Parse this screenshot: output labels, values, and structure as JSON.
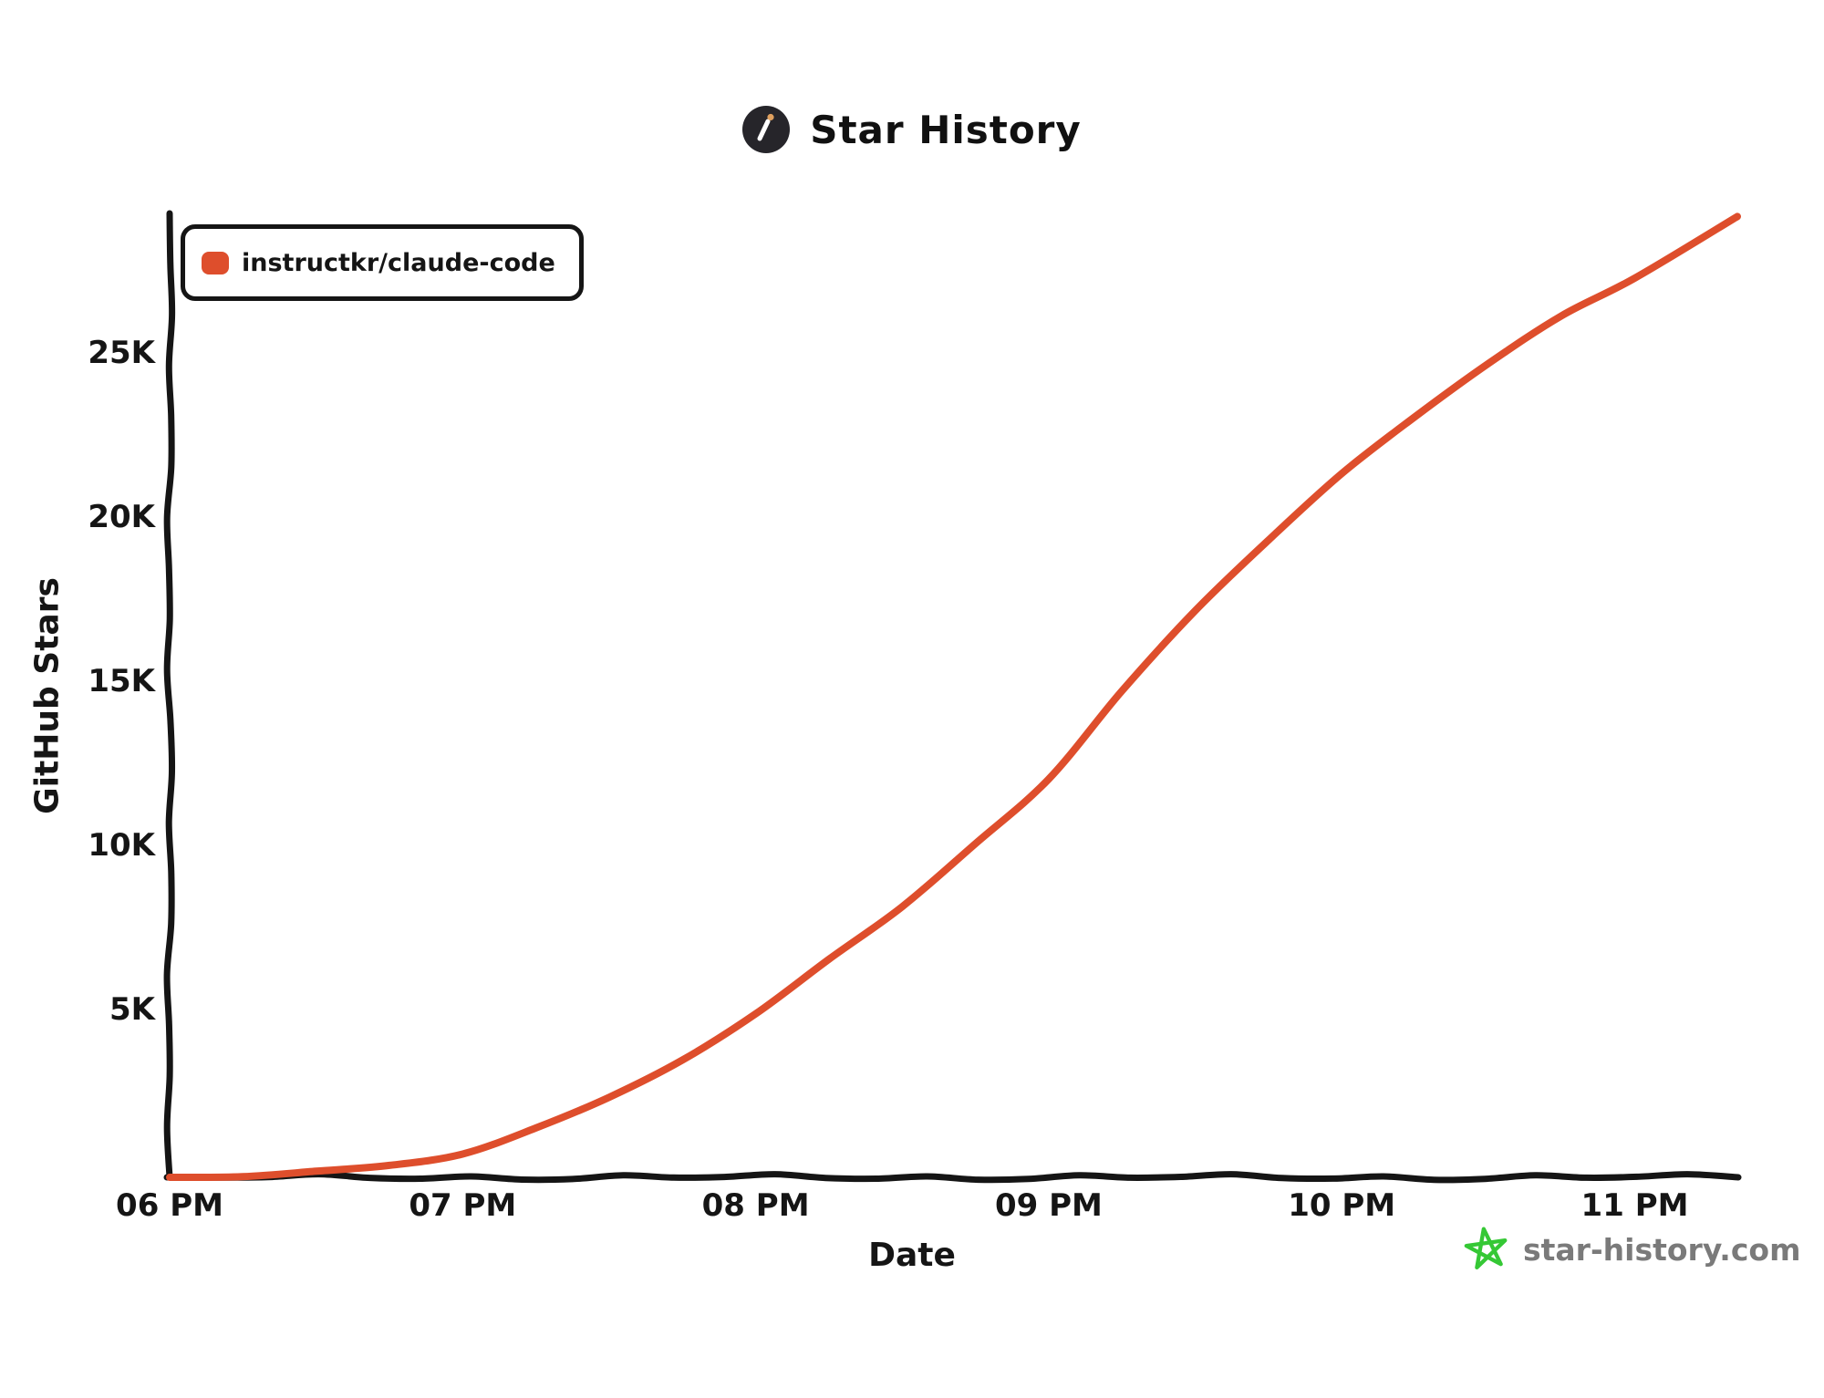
{
  "title": {
    "text": "Star History",
    "logo_icon": "magic-wand-badge"
  },
  "legend": {
    "items": [
      {
        "label": "instructkr/claude-code",
        "swatch_color": "#DE4E2C"
      }
    ]
  },
  "axes": {
    "y_label": "GitHub Stars",
    "x_label": "Date"
  },
  "footer": {
    "site_label": "star-history.com",
    "star_icon": "green-doodle-star"
  },
  "colors": {
    "line": "#DE4E2C",
    "axis": "#151515",
    "logo_bg": "#26252A",
    "logo_tip": "#DFA05F",
    "footer_star": "#35C835",
    "footer_text": "#7A7A7A"
  },
  "chart_data": {
    "type": "line",
    "title": "Star History",
    "xlabel": "Date",
    "ylabel": "GitHub Stars",
    "grid": false,
    "legend_position": "top-left",
    "style": "hand-drawn (xkcd-like)",
    "x_axis": {
      "unit": "time of day",
      "ticks": [
        {
          "label": "06 PM",
          "hour": 18
        },
        {
          "label": "07 PM",
          "hour": 19
        },
        {
          "label": "08 PM",
          "hour": 20
        },
        {
          "label": "09 PM",
          "hour": 21
        },
        {
          "label": "10 PM",
          "hour": 22
        },
        {
          "label": "11 PM",
          "hour": 23
        }
      ],
      "range_hours": [
        18,
        23.35
      ]
    },
    "y_axis": {
      "ticks": [
        {
          "label": "5K",
          "value": 5000
        },
        {
          "label": "10K",
          "value": 10000
        },
        {
          "label": "15K",
          "value": 15000
        },
        {
          "label": "20K",
          "value": 20000
        },
        {
          "label": "25K",
          "value": 25000
        }
      ],
      "range": [
        0,
        29300
      ]
    },
    "series": [
      {
        "name": "instructkr/claude-code",
        "color": "#DE4E2C",
        "points_hour_stars": [
          [
            18.0,
            0
          ],
          [
            18.25,
            60
          ],
          [
            18.5,
            160
          ],
          [
            18.75,
            340
          ],
          [
            19.0,
            750
          ],
          [
            19.25,
            1500
          ],
          [
            19.5,
            2400
          ],
          [
            19.75,
            3600
          ],
          [
            20.0,
            5000
          ],
          [
            20.25,
            6600
          ],
          [
            20.5,
            8250
          ],
          [
            20.75,
            10200
          ],
          [
            21.0,
            12100
          ],
          [
            21.25,
            14800
          ],
          [
            21.5,
            17300
          ],
          [
            21.75,
            19400
          ],
          [
            22.0,
            21400
          ],
          [
            22.25,
            23200
          ],
          [
            22.5,
            24800
          ],
          [
            22.75,
            26200
          ],
          [
            23.0,
            27400
          ],
          [
            23.35,
            29300
          ]
        ]
      }
    ]
  }
}
